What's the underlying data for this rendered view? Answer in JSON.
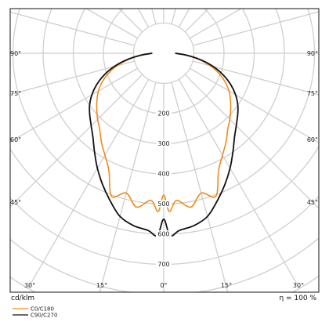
{
  "chart_data": {
    "type": "polar",
    "unit_label": "cd/klm",
    "efficiency_label": "η = 100 %",
    "grid": true,
    "legend_placement": "bottom-left",
    "radial_ticks": [
      200,
      300,
      400,
      500,
      600,
      700
    ],
    "angle_labels_side": [
      "90°",
      "75°",
      "60°",
      "45°"
    ],
    "angle_labels_bottom": [
      "30°",
      "15°",
      "0°",
      "15°",
      "30°"
    ],
    "series": [
      {
        "name": "C0/C180",
        "color": "#f08c1a",
        "angles": [
          0,
          2,
          5,
          10,
          15,
          20,
          25,
          30,
          35,
          40,
          45,
          50,
          55,
          60,
          65,
          70,
          75,
          80,
          85,
          90
        ],
        "intensity": [
          470,
          525,
          490,
          518,
          480,
          505,
          430,
          390,
          360,
          330,
          310,
          290,
          270,
          250,
          225,
          195,
          160,
          120,
          75,
          38
        ]
      },
      {
        "name": "C90/C270",
        "color": "#111111",
        "angles": [
          0,
          2,
          5,
          10,
          15,
          20,
          25,
          30,
          35,
          40,
          45,
          50,
          55,
          60,
          65,
          70,
          75,
          80,
          85,
          90
        ],
        "intensity": [
          550,
          605,
          590,
          580,
          560,
          520,
          480,
          440,
          400,
          365,
          340,
          320,
          300,
          275,
          245,
          210,
          170,
          125,
          78,
          38
        ]
      }
    ]
  }
}
